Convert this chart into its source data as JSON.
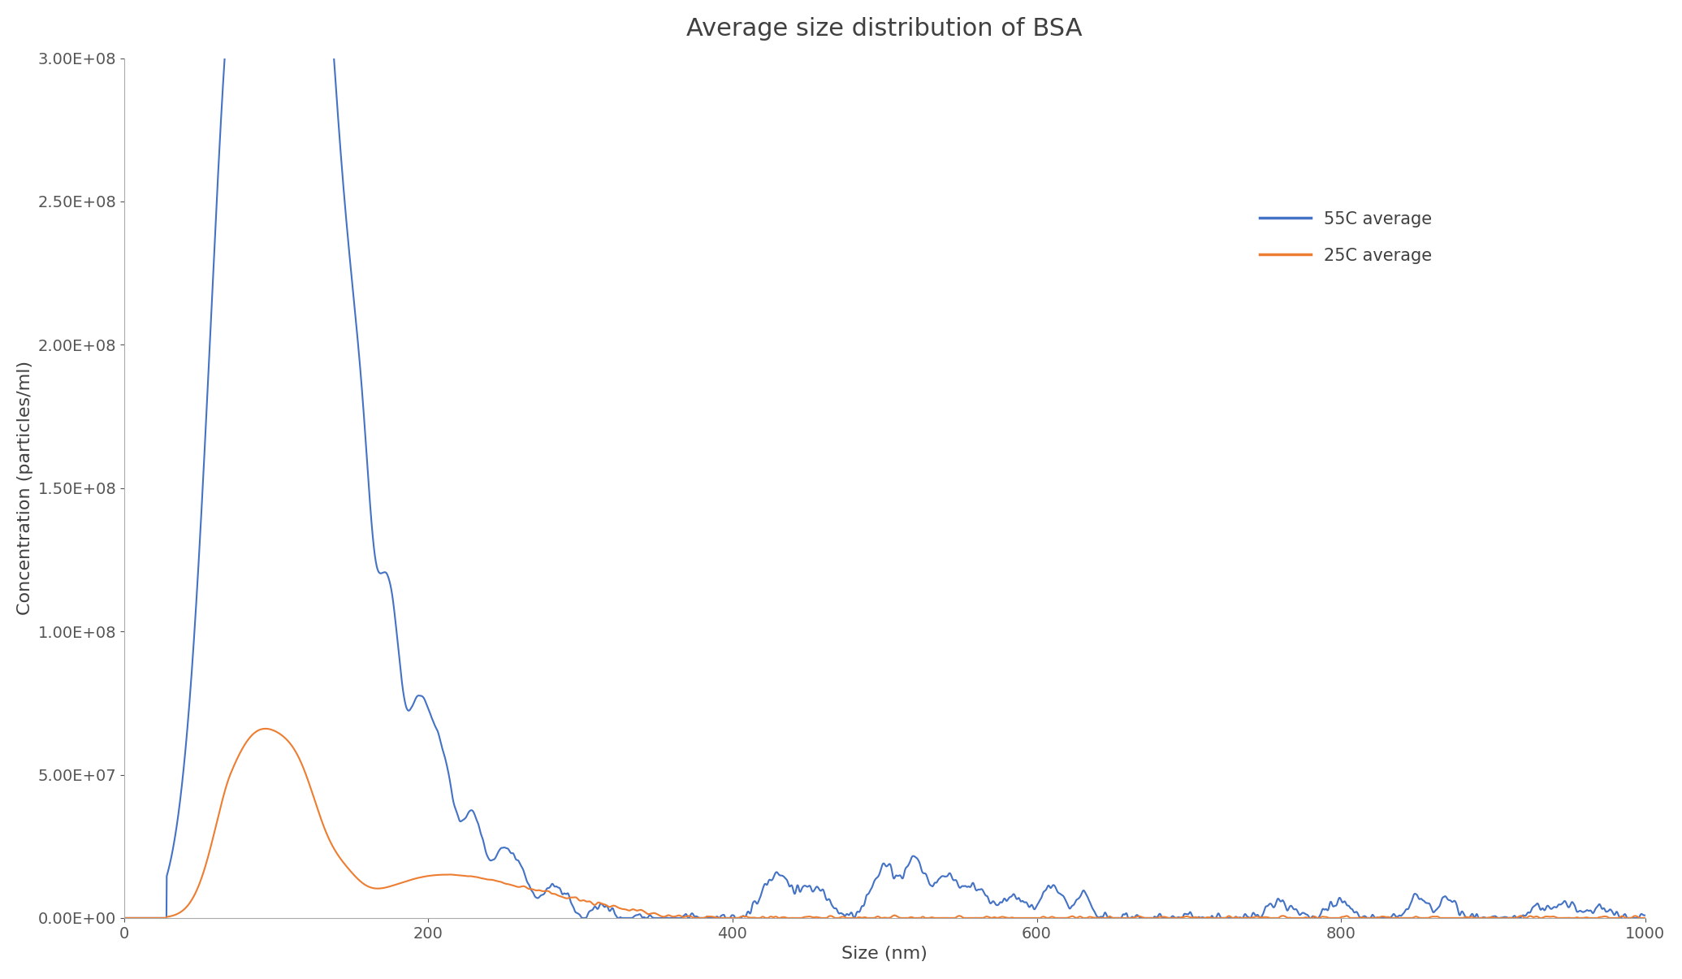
{
  "title": "Average size distribution of BSA",
  "xlabel": "Size (nm)",
  "ylabel": "Concentration (particles/ml)",
  "xlim": [
    0,
    1000
  ],
  "ylim": [
    0,
    300000000.0
  ],
  "yticks": [
    0,
    50000000.0,
    100000000.0,
    150000000.0,
    200000000.0,
    250000000.0,
    300000000.0
  ],
  "ytick_labels": [
    "0.00E+00",
    "5.00E+07",
    "1.00E+08",
    "1.50E+08",
    "2.00E+08",
    "2.50E+08",
    "3.00E+08"
  ],
  "xticks": [
    0,
    200,
    400,
    600,
    800,
    1000
  ],
  "legend": [
    "55C average",
    "25C average"
  ],
  "line_colors": [
    "#4472c4",
    "#ed7d31"
  ],
  "background_color": "#ffffff",
  "title_fontsize": 22,
  "axis_label_fontsize": 16,
  "tick_fontsize": 14,
  "legend_fontsize": 15
}
